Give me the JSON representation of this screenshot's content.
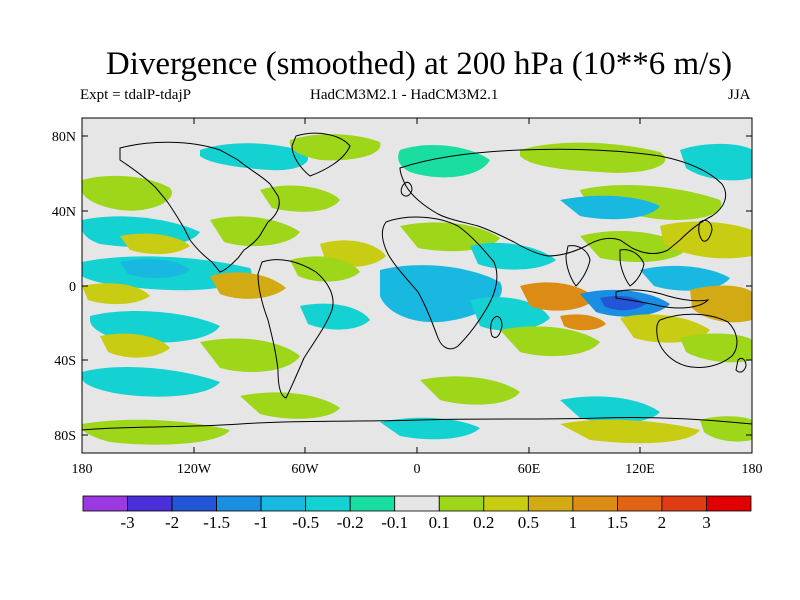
{
  "figure": {
    "title": "Divergence (smoothed) at 200 hPa (10**6 m/s)",
    "experiment": "Expt = tdalP-tdajP",
    "models": "HadCM3M2.1 - HadCM3M2.1",
    "season": "JJA"
  },
  "axes": {
    "lat_ticks": [
      "80N",
      "40N",
      "0",
      "40S",
      "80S"
    ],
    "lon_ticks": [
      "180",
      "120W",
      "60W",
      "0",
      "60E",
      "120E",
      "180"
    ]
  },
  "colorbar": {
    "labels": [
      "-3",
      "-2",
      "-1.5",
      "-1",
      "-0.5",
      "-0.2",
      "-0.1",
      "0.1",
      "0.2",
      "0.5",
      "1",
      "1.5",
      "2",
      "3"
    ],
    "colors": [
      "#9b3ae0",
      "#4b2fd8",
      "#2256d6",
      "#1a8ee0",
      "#18b8e0",
      "#14d2d2",
      "#19dea0",
      "#e6e6e6",
      "#9ed61a",
      "#c8cc12",
      "#d2aa14",
      "#dc8c14",
      "#e06414",
      "#e03c14",
      "#e00000"
    ]
  },
  "colors": {
    "land_outline": "#000000",
    "background": "#e6e6e6"
  }
}
